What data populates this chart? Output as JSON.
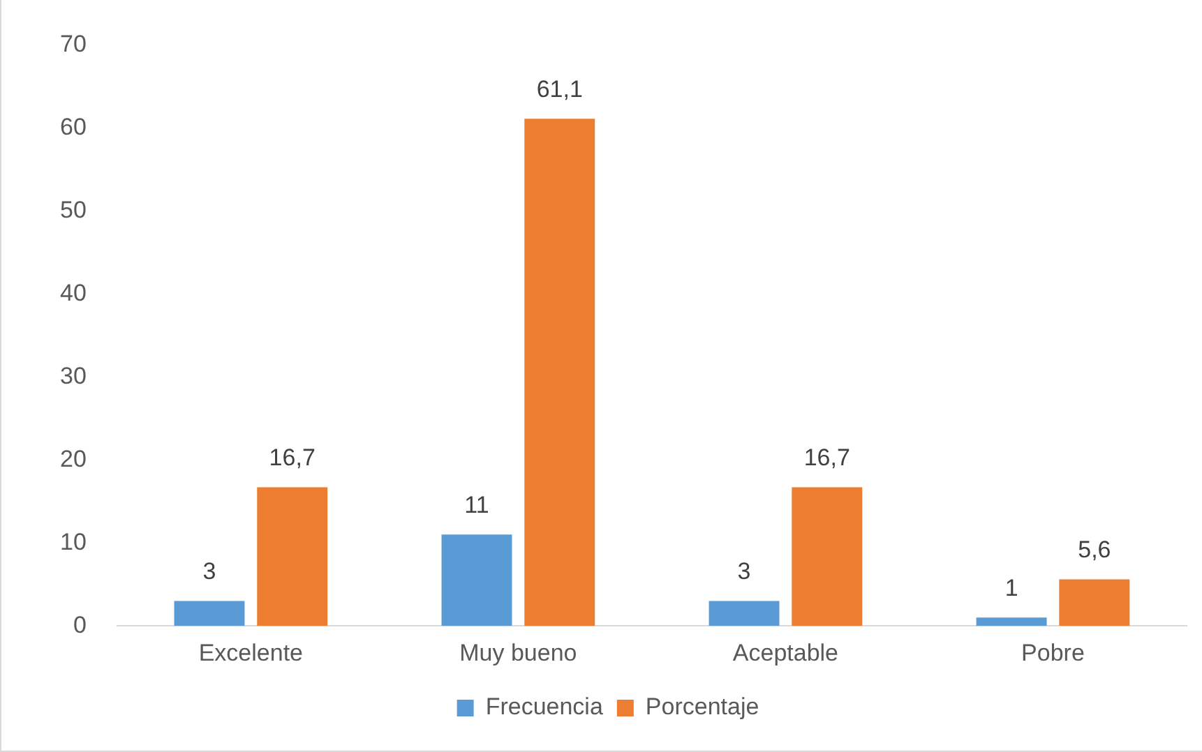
{
  "chart_data": {
    "type": "bar",
    "categories": [
      "Excelente",
      "Muy bueno",
      "Aceptable",
      "Pobre"
    ],
    "series": [
      {
        "name": "Frecuencia",
        "color": "#5b9bd5",
        "values": [
          3,
          11,
          3,
          1
        ],
        "value_labels": [
          "3",
          "11",
          "3",
          "1"
        ]
      },
      {
        "name": "Porcentaje",
        "color": "#ed7d31",
        "values": [
          16.7,
          61.1,
          16.7,
          5.6
        ],
        "value_labels": [
          "16,7",
          "61,1",
          "16,7",
          "5,6"
        ]
      }
    ],
    "ylim": [
      0,
      70
    ],
    "yticks": [
      0,
      10,
      20,
      30,
      40,
      50,
      60,
      70
    ],
    "grid": false,
    "legend": "bottom"
  }
}
